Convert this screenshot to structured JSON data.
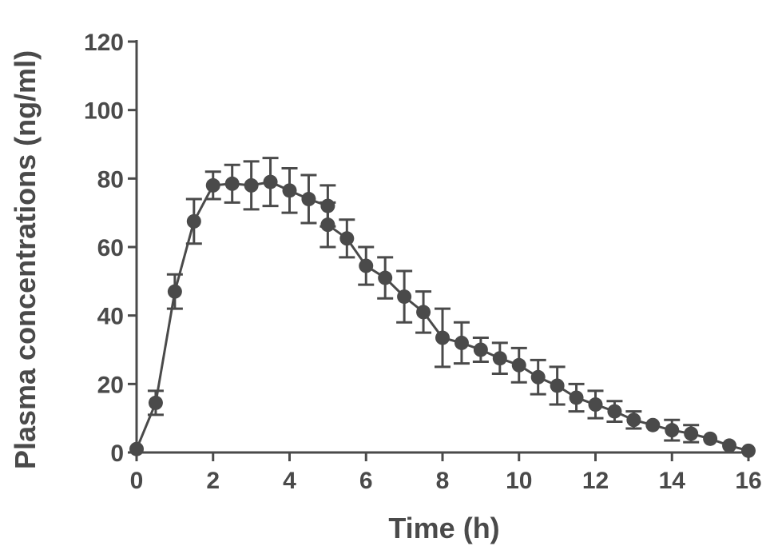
{
  "chart_data": {
    "type": "line",
    "title": "",
    "xlabel": "Time (h)",
    "ylabel": "Plasma concentrations (ng/ml)",
    "xlim": [
      0,
      16
    ],
    "ylim": [
      0,
      120
    ],
    "x_ticks": [
      0,
      2,
      4,
      6,
      8,
      10,
      12,
      14,
      16
    ],
    "y_ticks": [
      0,
      20,
      40,
      60,
      80,
      100,
      120
    ],
    "grid": false,
    "legend": "none",
    "color": "#4a4a4a",
    "series": [
      {
        "x": [
          0,
          0.5,
          1,
          1.5,
          2,
          2.5,
          3,
          3.5,
          4,
          4.5,
          5,
          5,
          5.5,
          6,
          6.5,
          7,
          7.5,
          8,
          8.5,
          9,
          9.5,
          10,
          10.5,
          11,
          11.5,
          12,
          12.5,
          13,
          13.5,
          14,
          14.5,
          15,
          15.5,
          16
        ],
        "y": [
          1,
          14.5,
          47,
          67.5,
          78,
          78.5,
          78,
          79,
          76.5,
          74,
          72,
          66.5,
          62.5,
          54.5,
          51,
          45.5,
          41,
          33.5,
          32,
          30,
          27.5,
          25.5,
          22,
          19.5,
          16,
          14,
          12,
          9.5,
          8,
          6.5,
          5.5,
          4,
          2,
          0.5
        ],
        "error": [
          0,
          3.5,
          5,
          6.5,
          4,
          5.5,
          7,
          7,
          6.5,
          7,
          6,
          6.5,
          5.5,
          5.5,
          6,
          7.5,
          6,
          8.5,
          6,
          3.5,
          4.5,
          5,
          5,
          5.5,
          4,
          4,
          3,
          2.5,
          0,
          3,
          2.5,
          0,
          0,
          0
        ]
      }
    ]
  }
}
